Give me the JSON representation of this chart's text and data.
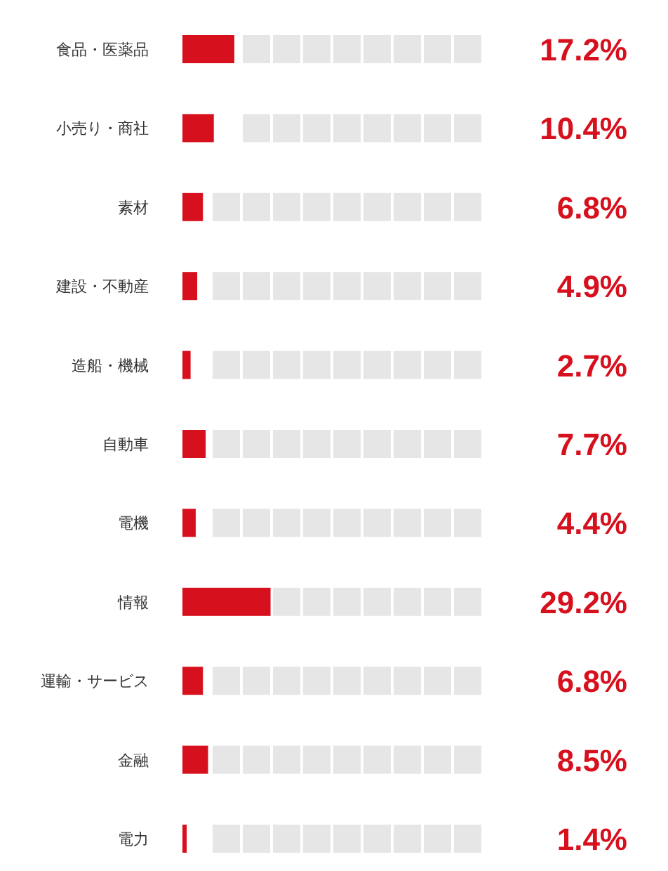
{
  "chart_data": {
    "type": "bar",
    "orientation": "horizontal",
    "categories": [
      "食品・医薬品",
      "小売り・商社",
      "素材",
      "建設・不動産",
      "造船・機械",
      "自動車",
      "電機",
      "情報",
      "運輸・サービス",
      "金融",
      "電力"
    ],
    "values": [
      17.2,
      10.4,
      6.8,
      4.9,
      2.7,
      7.7,
      4.4,
      29.2,
      6.8,
      8.5,
      1.4
    ],
    "value_labels": [
      "17.2%",
      "10.4%",
      "6.8%",
      "4.9%",
      "2.7%",
      "7.7%",
      "4.4%",
      "29.2%",
      "6.8%",
      "8.5%",
      "1.4%"
    ],
    "color": "#d7101e",
    "xlim": [
      0,
      100
    ]
  }
}
